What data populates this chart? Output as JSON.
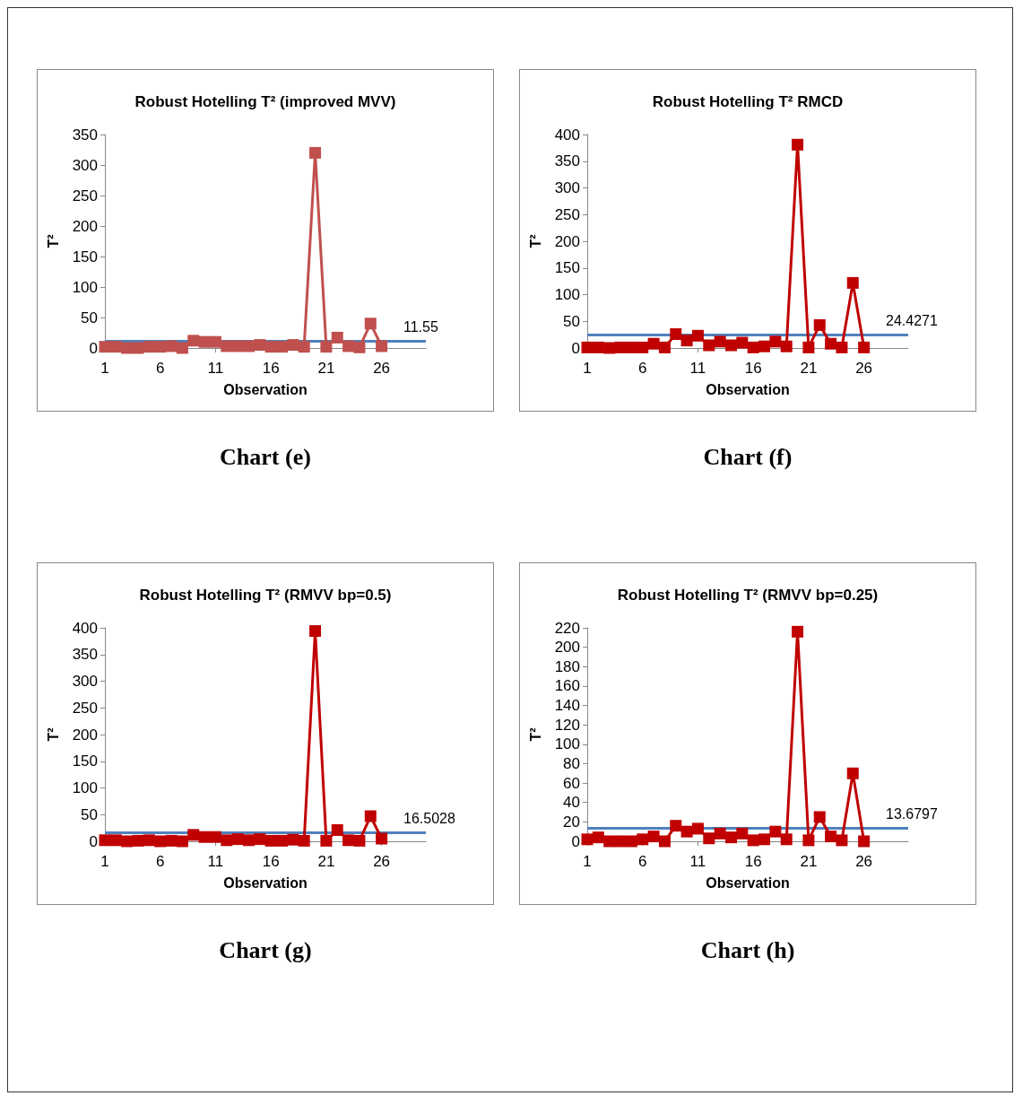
{
  "chart_data": [
    {
      "type": "line",
      "title": "Robust Hotelling T² (improved MVV)",
      "xlabel": "Observation",
      "ylabel": "T²",
      "annotations": [
        "Chart (e)"
      ],
      "marker": "square",
      "grid": false,
      "xlim": [
        1,
        30
      ],
      "xticks": [
        1,
        6,
        11,
        16,
        21,
        26
      ],
      "ylim": [
        0,
        350
      ],
      "yticks": [
        0,
        50,
        100,
        150,
        200,
        250,
        300,
        350
      ],
      "x": [
        1,
        2,
        3,
        4,
        5,
        6,
        7,
        8,
        9,
        10,
        11,
        12,
        13,
        14,
        15,
        16,
        17,
        18,
        19,
        20,
        21,
        22,
        23,
        24,
        25,
        26
      ],
      "series": [
        {
          "color": "#c0504d",
          "values": [
            2,
            2,
            0,
            0,
            2,
            2,
            3,
            0,
            12,
            10,
            10,
            3,
            3,
            3,
            5,
            2,
            2,
            5,
            2,
            320,
            2,
            17,
            3,
            1,
            40,
            3
          ]
        }
      ],
      "ref_lines": [
        {
          "axis": "y",
          "value": 11.55,
          "label": "11.55",
          "color": "#4f81bd"
        }
      ]
    },
    {
      "type": "line",
      "title": "Robust Hotelling T² RMCD",
      "xlabel": "Observation",
      "ylabel": "T²",
      "annotations": [
        "Chart (f)"
      ],
      "marker": "square",
      "grid": false,
      "xlim": [
        1,
        30
      ],
      "xticks": [
        1,
        6,
        11,
        16,
        21,
        26
      ],
      "ylim": [
        0,
        400
      ],
      "yticks": [
        0,
        50,
        100,
        150,
        200,
        250,
        300,
        350,
        400
      ],
      "x": [
        1,
        2,
        3,
        4,
        5,
        6,
        7,
        8,
        9,
        10,
        11,
        12,
        13,
        14,
        15,
        16,
        17,
        18,
        19,
        20,
        21,
        22,
        23,
        24,
        25,
        26
      ],
      "series": [
        {
          "color": "#c00000",
          "values": [
            1,
            1,
            0,
            1,
            1,
            1,
            8,
            1,
            26,
            14,
            23,
            5,
            12,
            5,
            10,
            1,
            3,
            12,
            3,
            381,
            1,
            43,
            8,
            1,
            122,
            1
          ]
        }
      ],
      "ref_lines": [
        {
          "axis": "y",
          "value": 24.4271,
          "label": "24.4271",
          "color": "#4f81bd"
        }
      ]
    },
    {
      "type": "line",
      "title": "Robust Hotelling T² (RMVV bp=0.5)",
      "xlabel": "Observation",
      "ylabel": "T²",
      "annotations": [
        "Chart (g)"
      ],
      "marker": "square",
      "grid": false,
      "xlim": [
        1,
        30
      ],
      "xticks": [
        1,
        6,
        11,
        16,
        21,
        26
      ],
      "ylim": [
        0,
        400
      ],
      "yticks": [
        0,
        50,
        100,
        150,
        200,
        250,
        300,
        350,
        400
      ],
      "x": [
        1,
        2,
        3,
        4,
        5,
        6,
        7,
        8,
        9,
        10,
        11,
        12,
        13,
        14,
        15,
        16,
        17,
        18,
        19,
        20,
        21,
        22,
        23,
        24,
        25,
        26
      ],
      "series": [
        {
          "color": "#c00000",
          "values": [
            2,
            2,
            0,
            1,
            2,
            0,
            1,
            0,
            12,
            8,
            8,
            2,
            4,
            2,
            4,
            1,
            1,
            3,
            1,
            394,
            1,
            21,
            2,
            1,
            47,
            5
          ]
        }
      ],
      "ref_lines": [
        {
          "axis": "y",
          "value": 16.5028,
          "label": "16.5028",
          "color": "#4f81bd"
        }
      ]
    },
    {
      "type": "line",
      "title": "Robust Hotelling T² (RMVV bp=0.25)",
      "xlabel": "Observation",
      "ylabel": "T²",
      "annotations": [
        "Chart (h)"
      ],
      "marker": "square",
      "grid": false,
      "xlim": [
        1,
        30
      ],
      "xticks": [
        1,
        6,
        11,
        16,
        21,
        26
      ],
      "ylim": [
        0,
        220
      ],
      "yticks": [
        0,
        20,
        40,
        60,
        80,
        100,
        120,
        140,
        160,
        180,
        200,
        220
      ],
      "x": [
        1,
        2,
        3,
        4,
        5,
        6,
        7,
        8,
        9,
        10,
        11,
        12,
        13,
        14,
        15,
        16,
        17,
        18,
        19,
        20,
        21,
        22,
        23,
        24,
        25,
        26
      ],
      "series": [
        {
          "color": "#c00000",
          "values": [
            2,
            4,
            0,
            0,
            0,
            2,
            5,
            0,
            16,
            10,
            13,
            3,
            8,
            4,
            8,
            1,
            2,
            10,
            2,
            216,
            1,
            25,
            5,
            1,
            70,
            0
          ]
        }
      ],
      "ref_lines": [
        {
          "axis": "y",
          "value": 13.6797,
          "label": "13.6797",
          "color": "#4f81bd"
        }
      ]
    }
  ]
}
